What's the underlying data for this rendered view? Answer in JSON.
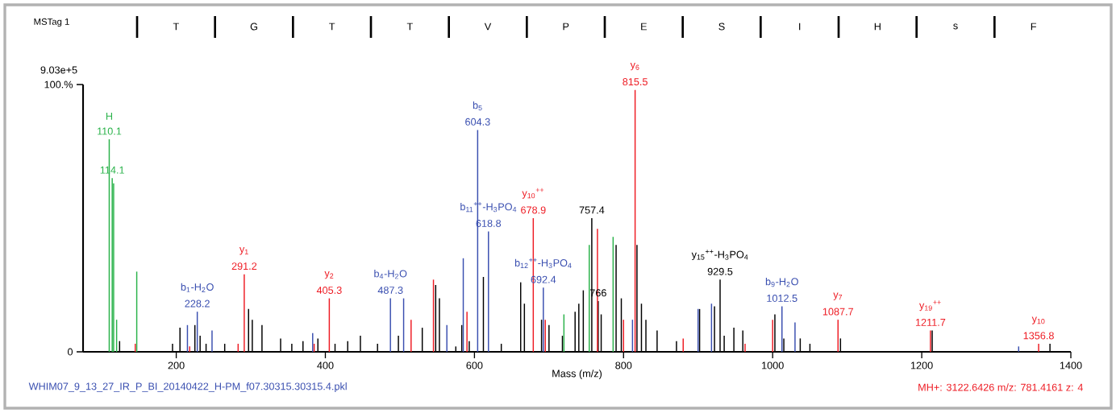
{
  "chart_data": {
    "type": "bar",
    "xlabel": "Mass (m/z)",
    "xlim": [
      75,
      1400
    ],
    "ylim": [
      0,
      100
    ],
    "xticks": [
      200,
      400,
      600,
      800,
      1000,
      1200,
      1400
    ],
    "ylabel": "9.03e+5",
    "yticks": [
      {
        "value": 0,
        "label": "0"
      },
      {
        "value": 100,
        "label": "100.%"
      }
    ],
    "series": [
      {
        "color": "#000000",
        "x": [
          124,
          195,
          205,
          225,
          232,
          240,
          265,
          297,
          302,
          315,
          340,
          355,
          370,
          390,
          413,
          430,
          447,
          470,
          498,
          530,
          548,
          553,
          575,
          583,
          593,
          612,
          636,
          662,
          667,
          690,
          700,
          718,
          735,
          740,
          746,
          757.4,
          766,
          770,
          790,
          797,
          818,
          824,
          830,
          845,
          871,
          902,
          922,
          929.5,
          935,
          948,
          960,
          1003,
          1015,
          1037,
          1050,
          1091,
          1214,
          1372
        ],
        "values": [
          4,
          3,
          9,
          10,
          6,
          3,
          3,
          16,
          12,
          10,
          5,
          3,
          4,
          5,
          3,
          4,
          6,
          3,
          6,
          9,
          25,
          20,
          2,
          10,
          4,
          28,
          3,
          26,
          18,
          12,
          10,
          6,
          15,
          18,
          23,
          50,
          19,
          14,
          40,
          20,
          40,
          18,
          12,
          8,
          4,
          16,
          17,
          27,
          6,
          9,
          8,
          14,
          5,
          5,
          3,
          5,
          8,
          3
        ]
      },
      {
        "color": "#3a4fb0",
        "x": [
          215,
          228.2,
          248,
          383,
          487.3,
          505,
          563,
          585,
          604.3,
          618.8,
          692.4,
          812,
          900,
          918,
          1012.5,
          1030,
          1330
        ],
        "values": [
          10,
          15,
          8,
          7,
          20,
          20,
          10,
          35,
          83,
          45,
          24,
          12,
          16,
          18,
          17,
          11,
          2
        ]
      },
      {
        "color": "#ee1c24",
        "x": [
          145,
          218,
          283,
          291.2,
          385,
          405.3,
          515,
          545,
          590,
          678.9,
          695,
          765,
          800,
          815.5,
          880,
          963,
          1000,
          1087.7,
          1211.7,
          1356.8
        ],
        "values": [
          3,
          2,
          3,
          29,
          3,
          20,
          12,
          27,
          15,
          50,
          12,
          46,
          12,
          98,
          5,
          3,
          12,
          12,
          8,
          3
        ]
      },
      {
        "color": "#2ab24a",
        "x": [
          110.1,
          114.1,
          116,
          120,
          147,
          720,
          754,
          786
        ],
        "values": [
          79.5,
          65,
          63,
          12,
          30,
          14,
          40,
          43
        ]
      }
    ],
    "annotations": [
      "MSTag 1",
      "T",
      "G",
      "T",
      "T",
      "V",
      "P",
      "E",
      "S",
      "I",
      "H",
      "s",
      "F",
      "WHIM07_9_13_27_IR_P_BI_20140422_H-PM_f07.30315.30315.4.pkl",
      "MH+: 3122.6426   m/z: 781.4161   z: 4",
      {
        "text": "H",
        "x": 110.1,
        "y": 79.5
      },
      {
        "text": "110.1",
        "x": 110.1,
        "y": 79.5
      },
      {
        "text": "114.1",
        "x": 114.1,
        "y": 65
      },
      {
        "text": "b$_{1}$-H$_{2}$O",
        "x": 228.2,
        "y": 15
      },
      {
        "text": "228.2",
        "x": 228.2,
        "y": 15
      },
      {
        "text": "y$_{1}$",
        "x": 291.2,
        "y": 29
      },
      {
        "text": "291.2",
        "x": 291.2,
        "y": 29
      },
      {
        "text": "y$_{2}$",
        "x": 405.3,
        "y": 20
      },
      {
        "text": "405.3",
        "x": 405.3,
        "y": 20
      },
      {
        "text": "b$_{4}$-H$_{2}$O",
        "x": 487.3,
        "y": 20
      },
      {
        "text": "487.3",
        "x": 487.3,
        "y": 20
      },
      {
        "text": "b$_{5}$",
        "x": 604.3,
        "y": 83
      },
      {
        "text": "604.3",
        "x": 604.3,
        "y": 83
      },
      {
        "text": "b$_{11}$$^{++}$-H$_{3}$PO$_{4}$",
        "x": 618.8,
        "y": 45
      },
      {
        "text": "618.8",
        "x": 618.8,
        "y": 45
      },
      {
        "text": "y$_{10}$$^{++}$",
        "x": 678.9,
        "y": 50
      },
      {
        "text": "678.9",
        "x": 678.9,
        "y": 50
      },
      {
        "text": "b$_{12}$$^{++}$-H$_{3}$PO$_{4}$",
        "x": 692.4,
        "y": 24
      },
      {
        "text": "692.4",
        "x": 692.4,
        "y": 24
      },
      {
        "text": "757.4",
        "x": 757.4,
        "y": 50
      },
      {
        "text": "766",
        "x": 766,
        "y": 19
      },
      {
        "text": "y$_{6}$",
        "x": 815.5,
        "y": 98
      },
      {
        "text": "815.5",
        "x": 815.5,
        "y": 98
      },
      {
        "text": "y$_{15}$$^{++}$-H$_{3}$PO$_{4}$",
        "x": 929.5,
        "y": 27
      },
      {
        "text": "929.5",
        "x": 929.5,
        "y": 27
      },
      {
        "text": "b$_{9}$-H$_{2}$O",
        "x": 1012.5,
        "y": 17
      },
      {
        "text": "1012.5",
        "x": 1012.5,
        "y": 17
      },
      {
        "text": "y$_{7}$",
        "x": 1087.7,
        "y": 12
      },
      {
        "text": "1087.7",
        "x": 1087.7,
        "y": 12
      },
      {
        "text": "y$_{19}$$^{++}$",
        "x": 1211.7,
        "y": 8
      },
      {
        "text": "1211.7",
        "x": 1211.7,
        "y": 8
      },
      {
        "text": "y$_{10}$",
        "x": 1356.8,
        "y": 3
      },
      {
        "text": "1356.8",
        "x": 1356.8,
        "y": 3
      }
    ]
  }
}
